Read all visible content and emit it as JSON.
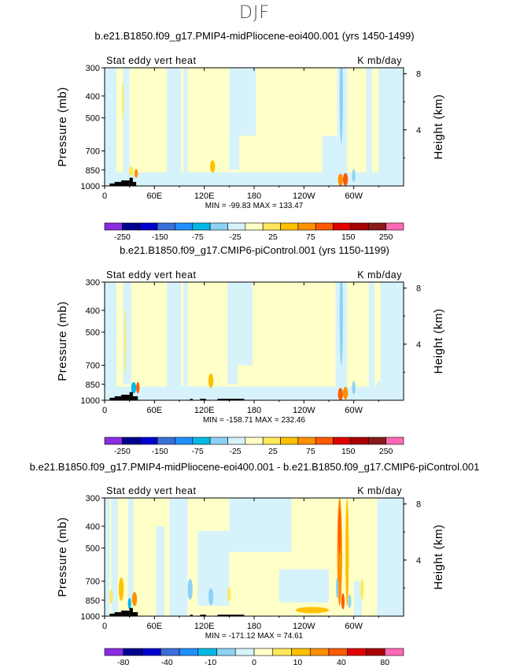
{
  "page_title": "DJF",
  "chart_data": [
    {
      "type": "heatmap",
      "title": "b.e21.B1850.f09_g17.PMIP4-midPliocene-eoi400.001 (yrs 1450-1499)",
      "variable_label": "Stat eddy vert heat",
      "units_label": "K mb/day",
      "ylabel": "Pressure (mb)",
      "ylabel_right": "Height (km)",
      "x_ticks": [
        "0",
        "60E",
        "120E",
        "180",
        "120W",
        "60W"
      ],
      "x_tick_values": [
        0,
        60,
        120,
        180,
        240,
        300
      ],
      "xlim": [
        0,
        360
      ],
      "y_ticks": [
        "300",
        "400",
        "500",
        "700",
        "850",
        "1000"
      ],
      "y_tick_values": [
        300,
        400,
        500,
        700,
        850,
        1000
      ],
      "ylim": [
        1000,
        300
      ],
      "right_ticks": [
        "4",
        "8"
      ],
      "right_tick_values": [
        4,
        8
      ],
      "stats": "MIN = -99.83   MAX = 133.47",
      "colorbar_labels": [
        "-250",
        "-150",
        "-75",
        "-25",
        "25",
        "75",
        "150",
        "250"
      ],
      "colorbar_levels": [
        -250,
        -200,
        -150,
        -100,
        -75,
        -50,
        -25,
        -10,
        10,
        25,
        50,
        75,
        100,
        150,
        200,
        250
      ],
      "colors": [
        "#8b2be2",
        "#000090",
        "#0000cd",
        "#3a6fd8",
        "#1e90ff",
        "#00b8e8",
        "#8ed1f5",
        "#d6f3fb",
        "#ffffc8",
        "#ffe85c",
        "#ffc000",
        "#ff9000",
        "#ff5a00",
        "#e00000",
        "#a80000",
        "#8b1a1a",
        "#ff69b4"
      ],
      "features": [
        {
          "type": "hband",
          "x": [
            0,
            360
          ],
          "p": [
            870,
            1000
          ],
          "level": -1
        },
        {
          "type": "band",
          "x": [
            0,
            14
          ],
          "p": [
            300,
            1000
          ],
          "level": -1
        },
        {
          "type": "band",
          "x": [
            22,
            30
          ],
          "p": [
            300,
            900
          ],
          "level": -1
        },
        {
          "type": "band",
          "x": [
            75,
            92
          ],
          "p": [
            300,
            1000
          ],
          "level": -1
        },
        {
          "type": "band",
          "x": [
            95,
            100
          ],
          "p": [
            300,
            1000
          ],
          "level": -1
        },
        {
          "type": "band",
          "x": [
            150,
            162
          ],
          "p": [
            300,
            850
          ],
          "level": -1
        },
        {
          "type": "band",
          "x": [
            162,
            182
          ],
          "p": [
            300,
            600
          ],
          "level": -1
        },
        {
          "type": "band",
          "x": [
            280,
            292
          ],
          "p": [
            300,
            1000
          ],
          "level": -1
        },
        {
          "type": "band",
          "x": [
            315,
            322
          ],
          "p": [
            300,
            1000
          ],
          "level": -1
        },
        {
          "type": "band",
          "x": [
            330,
            360
          ],
          "p": [
            300,
            1000
          ],
          "level": -1
        },
        {
          "type": "band",
          "x": [
            262,
            285
          ],
          "p": [
            600,
            900
          ],
          "level": -1
        },
        {
          "type": "blob",
          "x": 130,
          "p": 820,
          "rx": 3,
          "rp": 50,
          "level": 2
        },
        {
          "type": "blob",
          "x": 32,
          "p": 860,
          "rx": 3,
          "rp": 40,
          "level": 1
        },
        {
          "type": "blob",
          "x": 38,
          "p": 880,
          "rx": 2,
          "rp": 40,
          "level": 3
        },
        {
          "type": "blob",
          "x": 285,
          "p": 400,
          "rx": 2,
          "rp": 180,
          "level": -2
        },
        {
          "type": "blob",
          "x": 284,
          "p": 940,
          "rx": 3,
          "rp": 60,
          "level": 3
        },
        {
          "type": "blob",
          "x": 290,
          "p": 935,
          "rx": 3,
          "rp": 60,
          "level": 4
        },
        {
          "type": "blob",
          "x": 300,
          "p": 900,
          "rx": 2,
          "rp": 60,
          "level": -2
        },
        {
          "type": "blob",
          "x": 22,
          "p": 420,
          "rx": 1,
          "rp": 80,
          "level": 1
        }
      ],
      "topography": [
        {
          "x": [
            6,
            12
          ],
          "p": 975
        },
        {
          "x": [
            12,
            20
          ],
          "p": 960
        },
        {
          "x": [
            20,
            30
          ],
          "p": 945
        },
        {
          "x": [
            30,
            34
          ],
          "p": 920
        },
        {
          "x": [
            34,
            38
          ],
          "p": 960
        }
      ]
    },
    {
      "type": "heatmap",
      "title": "b.e21.B1850.f09_g17.CMIP6-piControl.001 (yrs 1150-1199)",
      "variable_label": "Stat eddy vert heat",
      "units_label": "K mb/day",
      "ylabel": "Pressure (mb)",
      "ylabel_right": "Height (km)",
      "x_ticks": [
        "0",
        "60E",
        "120E",
        "180",
        "120W",
        "60W"
      ],
      "x_tick_values": [
        0,
        60,
        120,
        180,
        240,
        300
      ],
      "xlim": [
        0,
        360
      ],
      "y_ticks": [
        "300",
        "400",
        "500",
        "700",
        "850",
        "1000"
      ],
      "y_tick_values": [
        300,
        400,
        500,
        700,
        850,
        1000
      ],
      "ylim": [
        1000,
        300
      ],
      "right_ticks": [
        "4",
        "8"
      ],
      "right_tick_values": [
        4,
        8
      ],
      "stats": "MIN = -158.71   MAX = 232.46",
      "colorbar_labels": [
        "-250",
        "-150",
        "-75",
        "-25",
        "25",
        "75",
        "150",
        "250"
      ],
      "colorbar_levels": [
        -250,
        -200,
        -150,
        -100,
        -75,
        -50,
        -25,
        -10,
        10,
        25,
        50,
        75,
        100,
        150,
        200,
        250
      ],
      "colors": [
        "#8b2be2",
        "#000090",
        "#0000cd",
        "#3a6fd8",
        "#1e90ff",
        "#00b8e8",
        "#8ed1f5",
        "#d6f3fb",
        "#ffffc8",
        "#ffe85c",
        "#ffc000",
        "#ff9000",
        "#ff5a00",
        "#e00000",
        "#a80000",
        "#8b1a1a",
        "#ff69b4"
      ],
      "features": [
        {
          "type": "hband",
          "x": [
            0,
            360
          ],
          "p": [
            870,
            1000
          ],
          "level": -1
        },
        {
          "type": "band",
          "x": [
            0,
            14
          ],
          "p": [
            300,
            1000
          ],
          "level": -1
        },
        {
          "type": "band",
          "x": [
            22,
            32
          ],
          "p": [
            300,
            850
          ],
          "level": -1
        },
        {
          "type": "band",
          "x": [
            75,
            92
          ],
          "p": [
            300,
            1000
          ],
          "level": -1
        },
        {
          "type": "band",
          "x": [
            95,
            100
          ],
          "p": [
            300,
            1000
          ],
          "level": -1
        },
        {
          "type": "band",
          "x": [
            148,
            160
          ],
          "p": [
            300,
            850
          ],
          "level": -1
        },
        {
          "type": "band",
          "x": [
            160,
            178
          ],
          "p": [
            300,
            700
          ],
          "level": -1
        },
        {
          "type": "band",
          "x": [
            278,
            292
          ],
          "p": [
            300,
            1000
          ],
          "level": -1
        },
        {
          "type": "band",
          "x": [
            318,
            325
          ],
          "p": [
            300,
            1000
          ],
          "level": -1
        },
        {
          "type": "band",
          "x": [
            332,
            360
          ],
          "p": [
            300,
            1000
          ],
          "level": -1
        },
        {
          "type": "blob",
          "x": 128,
          "p": 820,
          "rx": 3,
          "rp": 60,
          "level": 2
        },
        {
          "type": "blob",
          "x": 25,
          "p": 550,
          "rx": 1,
          "rp": 180,
          "level": 1
        },
        {
          "type": "blob",
          "x": 35,
          "p": 880,
          "rx": 3,
          "rp": 50,
          "level": -3
        },
        {
          "type": "blob",
          "x": 40,
          "p": 880,
          "rx": 2,
          "rp": 50,
          "level": 4
        },
        {
          "type": "blob",
          "x": 285,
          "p": 420,
          "rx": 2,
          "rp": 200,
          "level": -2
        },
        {
          "type": "blob",
          "x": 284,
          "p": 940,
          "rx": 3,
          "rp": 60,
          "level": 4
        },
        {
          "type": "blob",
          "x": 290,
          "p": 930,
          "rx": 3,
          "rp": 60,
          "level": 3
        },
        {
          "type": "blob",
          "x": 300,
          "p": 880,
          "rx": 2,
          "rp": 60,
          "level": -2
        },
        {
          "type": "blob",
          "x": 330,
          "p": 870,
          "rx": 3,
          "rp": 50,
          "level": -1
        }
      ],
      "topography": [
        {
          "x": [
            6,
            12
          ],
          "p": 975
        },
        {
          "x": [
            12,
            20
          ],
          "p": 960
        },
        {
          "x": [
            20,
            30
          ],
          "p": 945
        },
        {
          "x": [
            30,
            34
          ],
          "p": 920
        },
        {
          "x": [
            34,
            40
          ],
          "p": 960
        },
        {
          "x": [
            103,
            106
          ],
          "p": 985
        },
        {
          "x": [
            115,
            122
          ],
          "p": 985
        },
        {
          "x": [
            136,
            168
          ],
          "p": 985
        }
      ]
    },
    {
      "type": "heatmap",
      "title": "b.e21.B1850.f09_g17.PMIP4-midPliocene-eoi400.001 - b.e21.B1850.f09_g17.CMIP6-piControl.001",
      "variable_label": "Stat eddy vert heat",
      "units_label": "K mb/day",
      "ylabel": "Pressure (mb)",
      "ylabel_right": "Height (km)",
      "x_ticks": [
        "0",
        "60E",
        "120E",
        "180",
        "120W",
        "60W"
      ],
      "x_tick_values": [
        0,
        60,
        120,
        180,
        240,
        300
      ],
      "xlim": [
        0,
        360
      ],
      "y_ticks": [
        "300",
        "400",
        "500",
        "700",
        "850",
        "1000"
      ],
      "y_tick_values": [
        300,
        400,
        500,
        700,
        850,
        1000
      ],
      "ylim": [
        1000,
        300
      ],
      "right_ticks": [
        "4",
        "8"
      ],
      "right_tick_values": [
        4,
        8
      ],
      "stats": "MIN = -171.12   MAX = 74.61",
      "colorbar_labels": [
        "-80",
        "-40",
        "-10",
        "0",
        "10",
        "40",
        "80"
      ],
      "colorbar_levels": [
        -100,
        -80,
        -60,
        -40,
        -20,
        -10,
        -5,
        0,
        5,
        10,
        20,
        40,
        60,
        80,
        100
      ],
      "colors": [
        "#8b2be2",
        "#000090",
        "#0000cd",
        "#3a6fd8",
        "#1e90ff",
        "#00b8e8",
        "#8ed1f5",
        "#d6f3fb",
        "#ffffc8",
        "#ffe85c",
        "#ffc000",
        "#ff9000",
        "#ff5a00",
        "#e00000",
        "#a80000",
        "#ff69b4"
      ],
      "features": [
        {
          "type": "band",
          "x": [
            0,
            6
          ],
          "p": [
            300,
            1000
          ],
          "level": -1
        },
        {
          "type": "band",
          "x": [
            8,
            16
          ],
          "p": [
            300,
            1000
          ],
          "level": -1
        },
        {
          "type": "band",
          "x": [
            28,
            35
          ],
          "p": [
            300,
            850
          ],
          "level": -1
        },
        {
          "type": "band",
          "x": [
            62,
            72
          ],
          "p": [
            400,
            1000
          ],
          "level": -1
        },
        {
          "type": "band",
          "x": [
            78,
            100
          ],
          "p": [
            300,
            1000
          ],
          "level": -1
        },
        {
          "type": "band",
          "x": [
            112,
            150
          ],
          "p": [
            420,
            900
          ],
          "level": -1
        },
        {
          "type": "band",
          "x": [
            150,
            225
          ],
          "p": [
            300,
            520
          ],
          "level": -1
        },
        {
          "type": "band",
          "x": [
            210,
            270
          ],
          "p": [
            620,
            870
          ],
          "level": -1
        },
        {
          "type": "band",
          "x": [
            328,
            360
          ],
          "p": [
            300,
            1000
          ],
          "level": -1
        },
        {
          "type": "band",
          "x": [
            300,
            310
          ],
          "p": [
            700,
            1000
          ],
          "level": -1
        },
        {
          "type": "blob",
          "x": 283,
          "p": 520,
          "rx": 3,
          "rp": 260,
          "level": 3
        },
        {
          "type": "blob",
          "x": 292,
          "p": 520,
          "rx": 2,
          "rp": 260,
          "level": 2
        },
        {
          "type": "blob",
          "x": 283,
          "p": 420,
          "rx": 1.5,
          "rp": 100,
          "level": 4
        },
        {
          "type": "blob",
          "x": 280,
          "p": 750,
          "rx": 1.5,
          "rp": 80,
          "level": -2
        },
        {
          "type": "blob",
          "x": 287,
          "p": 860,
          "rx": 2,
          "rp": 70,
          "level": 4
        },
        {
          "type": "blob",
          "x": 295,
          "p": 860,
          "rx": 2,
          "rp": 60,
          "level": -2
        },
        {
          "type": "blob",
          "x": 250,
          "p": 940,
          "rx": 20,
          "rp": 30,
          "level": 2
        },
        {
          "type": "blob",
          "x": 20,
          "p": 760,
          "rx": 3,
          "rp": 90,
          "level": 2
        },
        {
          "type": "blob",
          "x": 36,
          "p": 840,
          "rx": 3,
          "rp": 60,
          "level": 3
        },
        {
          "type": "blob",
          "x": 30,
          "p": 880,
          "rx": 2,
          "rp": 50,
          "level": -3
        },
        {
          "type": "blob",
          "x": 8,
          "p": 820,
          "rx": 2,
          "rp": 60,
          "level": 1
        },
        {
          "type": "blob",
          "x": 103,
          "p": 760,
          "rx": 3,
          "rp": 80,
          "level": -2
        },
        {
          "type": "blob",
          "x": 128,
          "p": 820,
          "rx": 3,
          "rp": 70,
          "level": -2
        },
        {
          "type": "blob",
          "x": 150,
          "p": 800,
          "rx": 2,
          "rp": 60,
          "level": 1
        },
        {
          "type": "blob",
          "x": 310,
          "p": 760,
          "rx": 2,
          "rp": 80,
          "level": 1
        }
      ],
      "topography": [
        {
          "x": [
            6,
            12
          ],
          "p": 975
        },
        {
          "x": [
            12,
            20
          ],
          "p": 960
        },
        {
          "x": [
            20,
            30
          ],
          "p": 945
        },
        {
          "x": [
            30,
            34
          ],
          "p": 920
        },
        {
          "x": [
            34,
            40
          ],
          "p": 960
        },
        {
          "x": [
            103,
            106
          ],
          "p": 985
        },
        {
          "x": [
            115,
            122
          ],
          "p": 985
        },
        {
          "x": [
            136,
            168
          ],
          "p": 985
        }
      ]
    }
  ]
}
